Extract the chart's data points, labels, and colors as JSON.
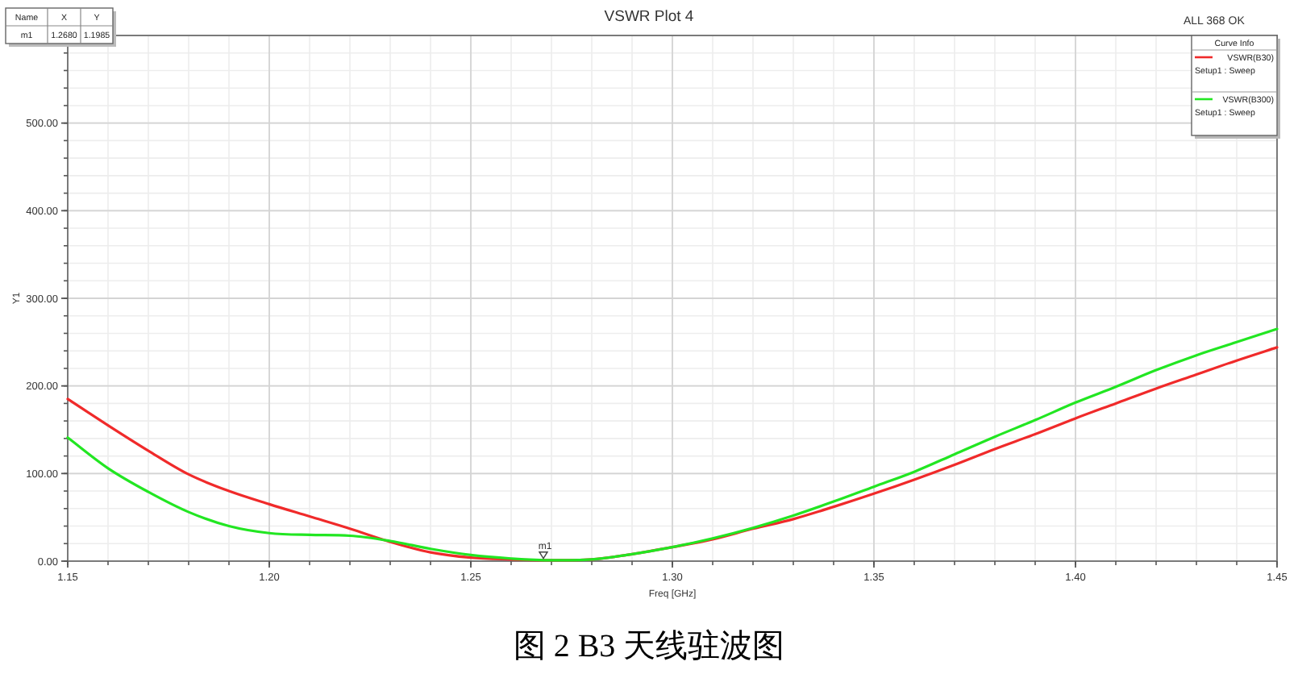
{
  "chart_data": {
    "type": "line",
    "title": "VSWR Plot 4",
    "xlabel": "Freq [GHz]",
    "ylabel": "Y1",
    "legend_title": "Curve Info",
    "x": [
      1.15,
      1.16,
      1.17,
      1.18,
      1.19,
      1.2,
      1.21,
      1.22,
      1.23,
      1.24,
      1.25,
      1.26,
      1.27,
      1.28,
      1.29,
      1.3,
      1.31,
      1.32,
      1.33,
      1.34,
      1.35,
      1.36,
      1.37,
      1.38,
      1.39,
      1.4,
      1.41,
      1.42,
      1.43,
      1.44,
      1.45
    ],
    "series": [
      {
        "name": "VSWR(B30)",
        "color": "#f02a2a",
        "values": [
          185,
          155,
          126,
          99,
          80,
          65,
          51,
          37,
          22,
          10,
          4,
          2,
          1,
          2,
          8,
          16,
          25,
          37,
          48,
          62,
          77,
          93,
          110,
          128,
          145,
          163,
          180,
          197,
          213,
          229,
          244
        ]
      },
      {
        "name": "VSWR(B300)",
        "color": "#22e622",
        "values": [
          141,
          106,
          79,
          56,
          40,
          32,
          30,
          29,
          23,
          14,
          7,
          3,
          1,
          2,
          8,
          16,
          26,
          38,
          52,
          68,
          85,
          102,
          122,
          142,
          161,
          181,
          199,
          218,
          235,
          250,
          265
        ]
      }
    ],
    "xlim": [
      1.15,
      1.45
    ],
    "ylim": [
      0,
      600
    ],
    "xticks": [
      {
        "value": 1.15,
        "label": "1.15"
      },
      {
        "value": 1.2,
        "label": "1.20"
      },
      {
        "value": 1.25,
        "label": "1.25"
      },
      {
        "value": 1.3,
        "label": "1.30"
      },
      {
        "value": 1.35,
        "label": "1.35"
      },
      {
        "value": 1.4,
        "label": "1.40"
      },
      {
        "value": 1.45,
        "label": "1.45"
      }
    ],
    "yticks": [
      {
        "value": 0,
        "label": "0.00"
      },
      {
        "value": 100,
        "label": "100.00"
      },
      {
        "value": 200,
        "label": "200.00"
      },
      {
        "value": 300,
        "label": "300.00"
      },
      {
        "value": 400,
        "label": "400.00"
      },
      {
        "value": 500,
        "label": "500.00"
      }
    ],
    "grid": true,
    "legend": "top right",
    "line_style": "solid",
    "annotations": [
      "Name",
      "X",
      "Y",
      "m1",
      "1.2680",
      "1.1985",
      "Setup1 : Sweep",
      "Setup1 : Sweep",
      "ALL 368 OK",
      {
        "text": "m1",
        "x": 1.268,
        "y": 1.1985
      },
      "图 2 B3 天线驻波图"
    ]
  }
}
